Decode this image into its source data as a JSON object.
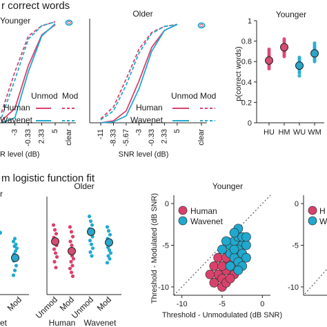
{
  "colors": {
    "human": "#d9416b",
    "wavenet": "#1fa9cf",
    "human_mean": "#d44d72",
    "wavenet_mean": "#2aa6c9",
    "axis": "#222222"
  },
  "headings": {
    "top": "r correct words",
    "bottom": "m logistic function fit"
  },
  "chart_data": [
    {
      "id": "psychometric-younger-cropped",
      "type": "line",
      "title": "Younger",
      "xlabel": "R level (dB)",
      "x_ticks": [
        "-3",
        "-0.33",
        "2.33",
        "5",
        "clear"
      ],
      "legend": {
        "header_unmod": "Unmod",
        "header_mod": "Mod",
        "rows": [
          {
            "name": "Human",
            "color": "#d9416b"
          },
          {
            "name": "Wavenet",
            "color": "#1fa9cf"
          }
        ]
      },
      "series": [
        {
          "name": "Human Unmod",
          "style": "solid",
          "points": [
            [
              -5.67,
              0.02
            ],
            [
              -3,
              0.14
            ],
            [
              -0.33,
              0.56
            ],
            [
              2.33,
              0.86
            ],
            [
              5,
              0.96
            ]
          ]
        },
        {
          "name": "Human Mod",
          "style": "dashed",
          "points": [
            [
              -5.67,
              0.1
            ],
            [
              -3,
              0.5
            ],
            [
              -0.33,
              0.85
            ],
            [
              2.33,
              0.95
            ],
            [
              5,
              0.99
            ]
          ]
        },
        {
          "name": "Wavenet Unmod",
          "style": "solid",
          "points": [
            [
              -5.67,
              0.0
            ],
            [
              -3,
              0.05
            ],
            [
              -0.33,
              0.5
            ],
            [
              2.33,
              0.85
            ],
            [
              5,
              0.97
            ]
          ]
        },
        {
          "name": "Wavenet Mod",
          "style": "dashed",
          "points": [
            [
              -5.67,
              0.05
            ],
            [
              -3,
              0.42
            ],
            [
              -0.33,
              0.82
            ],
            [
              2.33,
              0.95
            ],
            [
              5,
              0.99
            ]
          ]
        }
      ],
      "clear_marker": {
        "x": "clear",
        "y": 0.98
      }
    },
    {
      "id": "psychometric-older",
      "type": "line",
      "title": "Older",
      "xlabel": "SNR level (dB)",
      "x_ticks": [
        "-11",
        "-8.33",
        "-5.67",
        "-3",
        "-0.33",
        "2.33",
        "5",
        "clear"
      ],
      "legend": {
        "header_unmod": "Unmod",
        "header_mod": "Mod",
        "rows": [
          {
            "name": "Human",
            "color": "#d9416b"
          },
          {
            "name": "Wavenet",
            "color": "#1fa9cf"
          }
        ]
      },
      "series": [
        {
          "name": "Human Unmod",
          "style": "solid",
          "points": [
            [
              -11,
              0.0
            ],
            [
              -8.33,
              0.02
            ],
            [
              -5.67,
              0.12
            ],
            [
              -3,
              0.42
            ],
            [
              -0.33,
              0.76
            ],
            [
              2.33,
              0.93
            ],
            [
              5,
              0.99
            ]
          ]
        },
        {
          "name": "Human Mod",
          "style": "dashed",
          "points": [
            [
              -11,
              0.04
            ],
            [
              -8.33,
              0.16
            ],
            [
              -5.67,
              0.44
            ],
            [
              -3,
              0.74
            ],
            [
              -0.33,
              0.91
            ],
            [
              2.33,
              0.97
            ],
            [
              5,
              0.99
            ]
          ]
        },
        {
          "name": "Wavenet Unmod",
          "style": "solid",
          "points": [
            [
              -11,
              0.0
            ],
            [
              -8.33,
              0.01
            ],
            [
              -5.67,
              0.07
            ],
            [
              -3,
              0.34
            ],
            [
              -0.33,
              0.72
            ],
            [
              2.33,
              0.93
            ],
            [
              5,
              0.99
            ]
          ]
        },
        {
          "name": "Wavenet Mod",
          "style": "dashed",
          "points": [
            [
              -11,
              0.03
            ],
            [
              -8.33,
              0.12
            ],
            [
              -5.67,
              0.38
            ],
            [
              -3,
              0.7
            ],
            [
              -0.33,
              0.9
            ],
            [
              2.33,
              0.97
            ],
            [
              5,
              0.99
            ]
          ]
        }
      ],
      "clear_marker": {
        "x": "clear",
        "y": 0.98
      }
    },
    {
      "id": "pcorrect-younger",
      "type": "scatter",
      "title": "Younger",
      "ylabel": "p(correct words)",
      "ylim": [
        0,
        1
      ],
      "y_ticks": [
        "0",
        "0.2",
        "0.4",
        "0.6",
        "0.8",
        "1"
      ],
      "categories": [
        "HU",
        "HM",
        "WU",
        "WM"
      ],
      "means": [
        0.61,
        0.74,
        0.56,
        0.68
      ],
      "points": [
        [
          0.53,
          0.55,
          0.57,
          0.58,
          0.59,
          0.6,
          0.61,
          0.62,
          0.63,
          0.64,
          0.65,
          0.66,
          0.68,
          0.7,
          0.72
        ],
        [
          0.65,
          0.67,
          0.69,
          0.7,
          0.71,
          0.72,
          0.73,
          0.74,
          0.75,
          0.76,
          0.77,
          0.78,
          0.8,
          0.82
        ],
        [
          0.46,
          0.49,
          0.51,
          0.53,
          0.55,
          0.56,
          0.57,
          0.58,
          0.59,
          0.6,
          0.62,
          0.64
        ],
        [
          0.6,
          0.62,
          0.64,
          0.65,
          0.66,
          0.67,
          0.68,
          0.69,
          0.7,
          0.71,
          0.72,
          0.74,
          0.76,
          0.78
        ]
      ]
    },
    {
      "id": "threshold-younger-cropped",
      "type": "scatter",
      "title": "",
      "categories": [
        "Mod"
      ],
      "points": [
        [
          -8,
          -7.5,
          -7,
          -6.5,
          -6.2,
          -6,
          -5.8,
          -5.5,
          -5.2,
          -5,
          -4.8,
          -4.5,
          -4.2
        ]
      ],
      "means": [
        -6.2
      ]
    },
    {
      "id": "threshold-older",
      "type": "scatter",
      "title": "Older",
      "categories": [
        "Unmod",
        "Mod",
        "Unmod",
        "Mod"
      ],
      "group_labels": [
        "Human",
        "Wavenet"
      ],
      "means": [
        -4.5,
        -5.5,
        -3.5,
        -4.6
      ],
      "points": [
        [
          -2.8,
          -3.3,
          -3.7,
          -4.1,
          -4.5,
          -4.9,
          -5.3,
          -5.7,
          -6.1,
          -6.6,
          -7.2
        ],
        [
          -3.0,
          -3.5,
          -4.0,
          -4.5,
          -4.9,
          -5.3,
          -5.7,
          -6.0,
          -6.3,
          -6.6,
          -7.0,
          -7.3,
          -7.7,
          -8.1
        ],
        [
          -1.9,
          -2.4,
          -2.8,
          -3.2,
          -3.6,
          -4.0,
          -4.4,
          -4.8,
          -5.2,
          -5.6,
          -6.0
        ],
        [
          -3.0,
          -3.4,
          -3.8,
          -4.2,
          -4.5,
          -4.8,
          -5.1,
          -5.4,
          -5.7,
          -6.0,
          -6.3,
          -6.7
        ]
      ]
    },
    {
      "id": "threshold-scatter-younger",
      "type": "scatter",
      "title": "Younger",
      "xlabel": "Threshold - Unmodulated (dB SNR)",
      "ylabel": "Threshold - Modulated (dB SNR)",
      "xlim": [
        -11,
        1
      ],
      "ylim": [
        -11,
        1
      ],
      "x_ticks": [
        "-10",
        "-5",
        "0"
      ],
      "y_ticks": [
        "-10",
        "-5",
        "0"
      ],
      "legend": [
        "Human",
        "Wavenet"
      ],
      "series": [
        {
          "name": "Human",
          "points": [
            [
              -6,
              -7.5
            ],
            [
              -5.5,
              -8.5
            ],
            [
              -5,
              -9
            ],
            [
              -4.5,
              -8
            ],
            [
              -4,
              -7
            ],
            [
              -5.5,
              -6.5
            ],
            [
              -6,
              -9.5
            ],
            [
              -5,
              -10
            ],
            [
              -4.5,
              -9.5
            ],
            [
              -3.5,
              -8.5
            ],
            [
              -4,
              -9
            ],
            [
              -6.5,
              -8.5
            ],
            [
              -5,
              -7.5
            ],
            [
              -3.5,
              -7.5
            ],
            [
              -4.5,
              -6.5
            ]
          ]
        },
        {
          "name": "Wavenet",
          "points": [
            [
              -4,
              -5
            ],
            [
              -3.5,
              -4.5
            ],
            [
              -3,
              -4
            ],
            [
              -2.5,
              -5
            ],
            [
              -3,
              -5.5
            ],
            [
              -4,
              -6
            ],
            [
              -3.5,
              -6.5
            ],
            [
              -2.5,
              -6
            ],
            [
              -2,
              -5
            ],
            [
              -2.5,
              -4
            ],
            [
              -3,
              -3
            ],
            [
              -4.5,
              -4.5
            ],
            [
              -3.5,
              -3.5
            ],
            [
              -2,
              -6.5
            ],
            [
              -3,
              -7
            ],
            [
              -4,
              -7.5
            ],
            [
              -2.5,
              -7.5
            ],
            [
              -5,
              -5.5
            ],
            [
              -3,
              -8
            ],
            [
              -2,
              -4
            ],
            [
              -3.5,
              -5.5
            ]
          ]
        }
      ]
    },
    {
      "id": "threshold-scatter-older-cropped",
      "type": "scatter",
      "title": "",
      "y_ticks": [
        "0",
        "-5",
        "-10"
      ],
      "legend": [
        "H",
        "W"
      ]
    }
  ]
}
